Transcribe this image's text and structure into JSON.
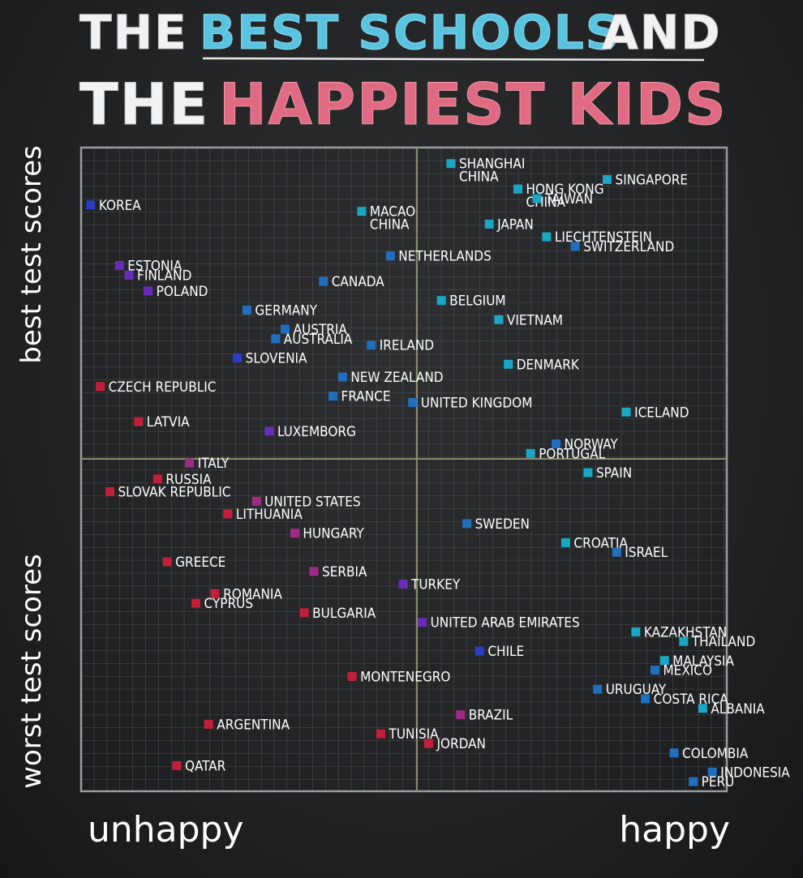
{
  "title": {
    "line1_part1": "THE",
    "line1_part2": "BEST SCHOOLS",
    "line1_part3": "AND",
    "line2_part1": "THE",
    "line2_part2": "HAPPIEST KIDS"
  },
  "colors": {
    "title_white": "#f2f2f2",
    "title_blue": "#58c4e0",
    "title_pink": "#e06a82",
    "marker_cyan": "#1aa7c6",
    "marker_blue": "#1f6fbf",
    "marker_navy": "#2b3cc6",
    "marker_purple": "#6a2bb8",
    "marker_magenta": "#a02b86",
    "marker_red": "#c2203a"
  },
  "chart_data": {
    "type": "scatter",
    "xlabel_left": "unhappy",
    "xlabel_right": "happy",
    "ylabel_top": "best test scores",
    "ylabel_bottom": "worst test scores",
    "xlim": [
      0,
      100
    ],
    "ylim": [
      0,
      100
    ],
    "grid": true,
    "points": [
      {
        "name": "SHANGHAI",
        "name2": "CHINA",
        "x": 57.5,
        "y": 98.0,
        "color": "cyan"
      },
      {
        "name": "SINGAPORE",
        "x": 82.0,
        "y": 95.5,
        "color": "cyan"
      },
      {
        "name": "HONG KONG",
        "name2": "CHINA",
        "x": 68.0,
        "y": 94.0,
        "color": "cyan"
      },
      {
        "name": "TAIWAN",
        "x": 71.0,
        "y": 92.5,
        "color": "cyan"
      },
      {
        "name": "KOREA",
        "x": 1.0,
        "y": 91.5,
        "color": "navy"
      },
      {
        "name": "MACAO",
        "name2": "CHINA",
        "x": 43.5,
        "y": 90.5,
        "color": "cyan"
      },
      {
        "name": "JAPAN",
        "x": 63.5,
        "y": 88.5,
        "color": "cyan"
      },
      {
        "name": "LIECHTENSTEIN",
        "x": 72.5,
        "y": 86.5,
        "color": "cyan"
      },
      {
        "name": "SWITZERLAND",
        "x": 77.0,
        "y": 85.0,
        "color": "blue"
      },
      {
        "name": "NETHERLANDS",
        "x": 48.0,
        "y": 83.5,
        "color": "blue"
      },
      {
        "name": "ESTONIA",
        "x": 5.5,
        "y": 82.0,
        "color": "purple"
      },
      {
        "name": "FINLAND",
        "x": 7.0,
        "y": 80.5,
        "color": "purple"
      },
      {
        "name": "CANADA",
        "x": 37.5,
        "y": 79.5,
        "color": "blue"
      },
      {
        "name": "POLAND",
        "x": 10.0,
        "y": 78.0,
        "color": "purple"
      },
      {
        "name": "BELGIUM",
        "x": 56.0,
        "y": 76.5,
        "color": "cyan"
      },
      {
        "name": "GERMANY",
        "x": 25.5,
        "y": 75.0,
        "color": "blue"
      },
      {
        "name": "VIETNAM",
        "x": 65.0,
        "y": 73.5,
        "color": "cyan"
      },
      {
        "name": "AUSTRIA",
        "x": 31.5,
        "y": 72.0,
        "color": "blue"
      },
      {
        "name": "AUSTRALIA",
        "x": 30.0,
        "y": 70.5,
        "color": "blue"
      },
      {
        "name": "IRELAND",
        "x": 45.0,
        "y": 69.5,
        "color": "blue"
      },
      {
        "name": "SLOVENIA",
        "x": 24.0,
        "y": 67.5,
        "color": "navy"
      },
      {
        "name": "DENMARK",
        "x": 66.5,
        "y": 66.5,
        "color": "cyan"
      },
      {
        "name": "NEW ZEALAND",
        "x": 40.5,
        "y": 64.5,
        "color": "blue"
      },
      {
        "name": "CZECH REPUBLIC",
        "x": 2.5,
        "y": 63.0,
        "color": "red"
      },
      {
        "name": "FRANCE",
        "x": 39.0,
        "y": 61.5,
        "color": "blue"
      },
      {
        "name": "UNITED KINGDOM",
        "x": 51.5,
        "y": 60.5,
        "color": "blue"
      },
      {
        "name": "ICELAND",
        "x": 85.0,
        "y": 59.0,
        "color": "cyan"
      },
      {
        "name": "LATVIA",
        "x": 8.5,
        "y": 57.5,
        "color": "red"
      },
      {
        "name": "LUXEMBORG",
        "x": 29.0,
        "y": 56.0,
        "color": "purple"
      },
      {
        "name": "NORWAY",
        "x": 74.0,
        "y": 54.0,
        "color": "blue"
      },
      {
        "name": "PORTUGAL",
        "x": 70.0,
        "y": 52.5,
        "color": "cyan"
      },
      {
        "name": "ITALY",
        "x": 16.5,
        "y": 51.0,
        "color": "magenta"
      },
      {
        "name": "SPAIN",
        "x": 79.0,
        "y": 49.5,
        "color": "cyan"
      },
      {
        "name": "RUSSIA",
        "x": 11.5,
        "y": 48.5,
        "color": "red"
      },
      {
        "name": "SLOVAK REPUBLIC",
        "x": 4.0,
        "y": 46.5,
        "color": "red"
      },
      {
        "name": "UNITED STATES",
        "x": 27.0,
        "y": 45.0,
        "color": "magenta"
      },
      {
        "name": "LITHUANIA",
        "x": 22.5,
        "y": 43.0,
        "color": "red"
      },
      {
        "name": "SWEDEN",
        "x": 60.0,
        "y": 41.5,
        "color": "blue"
      },
      {
        "name": "HUNGARY",
        "x": 33.0,
        "y": 40.0,
        "color": "magenta"
      },
      {
        "name": "CROATIA",
        "x": 75.5,
        "y": 38.5,
        "color": "cyan"
      },
      {
        "name": "ISRAEL",
        "x": 83.5,
        "y": 37.0,
        "color": "blue"
      },
      {
        "name": "GREECE",
        "x": 13.0,
        "y": 35.5,
        "color": "red"
      },
      {
        "name": "SERBIA",
        "x": 36.0,
        "y": 34.0,
        "color": "magenta"
      },
      {
        "name": "TURKEY",
        "x": 50.0,
        "y": 32.0,
        "color": "purple"
      },
      {
        "name": "ROMANIA",
        "x": 20.5,
        "y": 30.5,
        "color": "red"
      },
      {
        "name": "CYPRUS",
        "x": 17.5,
        "y": 29.0,
        "color": "red"
      },
      {
        "name": "BULGARIA",
        "x": 34.5,
        "y": 27.5,
        "color": "red"
      },
      {
        "name": "UNITED ARAB EMIRATES",
        "x": 53.0,
        "y": 26.0,
        "color": "purple"
      },
      {
        "name": "KAZAKHSTAN",
        "x": 86.5,
        "y": 24.5,
        "color": "cyan"
      },
      {
        "name": "THAILAND",
        "x": 94.0,
        "y": 23.0,
        "color": "cyan"
      },
      {
        "name": "CHILE",
        "x": 62.0,
        "y": 21.5,
        "color": "navy"
      },
      {
        "name": "MALAYSIA",
        "x": 91.0,
        "y": 20.0,
        "color": "cyan"
      },
      {
        "name": "MEXICO",
        "x": 89.5,
        "y": 18.5,
        "color": "blue"
      },
      {
        "name": "MONTENEGRO",
        "x": 42.0,
        "y": 17.5,
        "color": "red"
      },
      {
        "name": "URUGUAY",
        "x": 80.5,
        "y": 15.5,
        "color": "blue"
      },
      {
        "name": "COSTA RICA",
        "x": 88.0,
        "y": 14.0,
        "color": "blue"
      },
      {
        "name": "ALBANIA",
        "x": 97.0,
        "y": 12.5,
        "color": "cyan"
      },
      {
        "name": "BRAZIL",
        "x": 59.0,
        "y": 11.5,
        "color": "magenta"
      },
      {
        "name": "ARGENTINA",
        "x": 19.5,
        "y": 10.0,
        "color": "red"
      },
      {
        "name": "TUNISIA",
        "x": 46.5,
        "y": 8.5,
        "color": "red"
      },
      {
        "name": "JORDAN",
        "x": 54.0,
        "y": 7.0,
        "color": "red"
      },
      {
        "name": "COLOMBIA",
        "x": 92.5,
        "y": 5.5,
        "color": "blue"
      },
      {
        "name": "QATAR",
        "x": 14.5,
        "y": 3.5,
        "color": "red"
      },
      {
        "name": "INDONESIA",
        "x": 98.5,
        "y": 2.5,
        "color": "blue"
      },
      {
        "name": "PERU",
        "x": 95.5,
        "y": 1.0,
        "color": "blue"
      }
    ]
  }
}
